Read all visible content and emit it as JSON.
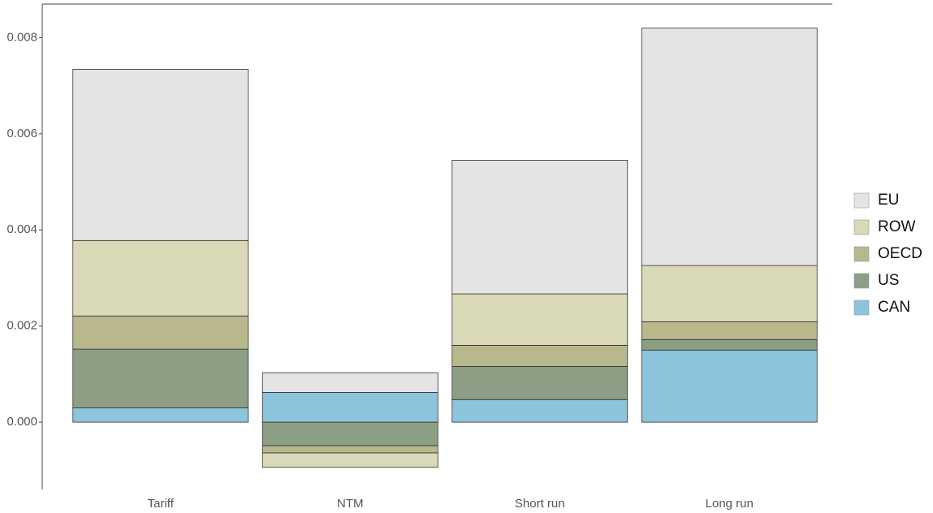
{
  "chart_data": {
    "type": "stacked-bar",
    "categories": [
      "Tariff",
      "NTM",
      "Short run",
      "Long run"
    ],
    "series": [
      {
        "name": "CAN",
        "color": "#8cc4dc",
        "values": [
          0.0003,
          0.00062,
          0.00047,
          0.0015
        ]
      },
      {
        "name": "US",
        "color": "#8c9e84",
        "values": [
          0.00122,
          -0.00049,
          0.00069,
          0.00022
        ]
      },
      {
        "name": "OECD",
        "color": "#b8b88c",
        "values": [
          0.00069,
          -0.00015,
          0.00044,
          0.00037
        ]
      },
      {
        "name": "ROW",
        "color": "#d9d9b8",
        "values": [
          0.00157,
          -0.0003,
          0.00107,
          0.00117
        ]
      },
      {
        "name": "EU",
        "color": "#e4e4e4",
        "values": [
          0.00356,
          0.00041,
          0.00278,
          0.00494
        ]
      }
    ],
    "ylim": [
      -0.0014,
      0.0087
    ],
    "yticks": [
      {
        "value": 0,
        "label": "0.000"
      },
      0.002,
      0.004,
      0.006,
      0.008
    ]
  }
}
